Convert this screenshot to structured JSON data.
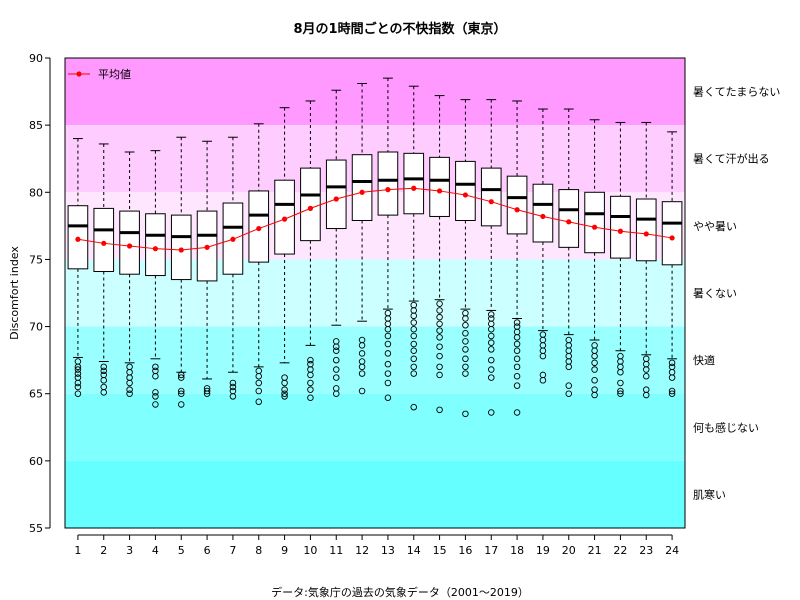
{
  "chart_data": {
    "type": "box",
    "title": "8月の1時間ごとの不快指数（東京）",
    "ylabel": "Discomfort index",
    "xlabel": "",
    "source": "データ:気象庁の過去の気象データ（2001〜2019）",
    "ylim": [
      55,
      90
    ],
    "yticks": [
      "55",
      "60",
      "65",
      "70",
      "75",
      "80",
      "85",
      "90"
    ],
    "categories": [
      "1",
      "2",
      "3",
      "4",
      "5",
      "6",
      "7",
      "8",
      "9",
      "10",
      "11",
      "12",
      "13",
      "14",
      "15",
      "16",
      "17",
      "18",
      "19",
      "20",
      "21",
      "22",
      "23",
      "24"
    ],
    "legend": {
      "label": "平均値",
      "position": "top-left",
      "color": "#ff0000"
    },
    "zones": [
      {
        "label": "暑くてたまらない",
        "from": 85,
        "to": 90,
        "color": "#ff99ff"
      },
      {
        "label": "暑くて汗が出る",
        "from": 80,
        "to": 85,
        "color": "#ffccff"
      },
      {
        "label": "やや暑い",
        "from": 75,
        "to": 80,
        "color": "#ffe6ff"
      },
      {
        "label": "暑くない",
        "from": 70,
        "to": 75,
        "color": "#ccffff"
      },
      {
        "label": "快適",
        "from": 65,
        "to": 70,
        "color": "#99ffff"
      },
      {
        "label": "何も感じない",
        "from": 60,
        "to": 65,
        "color": "#80ffff"
      },
      {
        "label": "肌寒い",
        "from": 55,
        "to": 60,
        "color": "#66ffff"
      }
    ],
    "series": [
      {
        "name": "平均値",
        "values": [
          76.5,
          76.2,
          76.0,
          75.8,
          75.7,
          75.9,
          76.5,
          77.3,
          78.0,
          78.8,
          79.5,
          80.0,
          80.2,
          80.3,
          80.1,
          79.8,
          79.3,
          78.7,
          78.2,
          77.8,
          77.4,
          77.1,
          76.9,
          76.6
        ]
      }
    ],
    "boxes": [
      {
        "whisker_low": 67.7,
        "q1": 74.3,
        "median": 77.5,
        "q3": 79.0,
        "whisker_high": 84.0,
        "outliers": [
          67.4,
          67.0,
          66.8,
          66.5,
          66.2,
          65.8,
          65.5,
          65.0
        ]
      },
      {
        "whisker_low": 67.4,
        "q1": 74.1,
        "median": 77.2,
        "q3": 78.8,
        "whisker_high": 83.6,
        "outliers": [
          67.0,
          66.7,
          66.4,
          66.0,
          65.5,
          65.1
        ]
      },
      {
        "whisker_low": 67.3,
        "q1": 73.9,
        "median": 77.0,
        "q3": 78.6,
        "whisker_high": 83.0,
        "outliers": [
          67.0,
          66.6,
          66.2,
          65.8,
          65.3,
          65.0
        ]
      },
      {
        "whisker_low": 67.6,
        "q1": 73.8,
        "median": 76.8,
        "q3": 78.4,
        "whisker_high": 83.1,
        "outliers": [
          67.0,
          66.7,
          66.3,
          65.1,
          64.8,
          64.2
        ]
      },
      {
        "whisker_low": 66.6,
        "q1": 73.5,
        "median": 76.7,
        "q3": 78.3,
        "whisker_high": 84.1,
        "outliers": [
          66.4,
          66.2,
          65.2,
          65.0,
          64.2
        ]
      },
      {
        "whisker_low": 66.1,
        "q1": 73.4,
        "median": 76.8,
        "q3": 78.6,
        "whisker_high": 83.8,
        "outliers": [
          65.4,
          65.2,
          65.0
        ]
      },
      {
        "whisker_low": 66.6,
        "q1": 73.9,
        "median": 77.4,
        "q3": 79.2,
        "whisker_high": 84.1,
        "outliers": [
          65.8,
          65.5,
          65.2,
          64.8
        ]
      },
      {
        "whisker_low": 67.0,
        "q1": 74.8,
        "median": 78.3,
        "q3": 80.1,
        "whisker_high": 85.1,
        "outliers": [
          66.7,
          66.3,
          65.8,
          65.2,
          64.4
        ]
      },
      {
        "whisker_low": 67.3,
        "q1": 75.4,
        "median": 79.1,
        "q3": 80.9,
        "whisker_high": 86.3,
        "outliers": [
          66.2,
          65.8,
          65.3,
          65.0,
          64.8
        ]
      },
      {
        "whisker_low": 68.6,
        "q1": 76.4,
        "median": 79.8,
        "q3": 81.8,
        "whisker_high": 86.8,
        "outliers": [
          67.5,
          67.2,
          66.8,
          66.4,
          65.8,
          65.3,
          64.7
        ]
      },
      {
        "whisker_low": 70.1,
        "q1": 77.3,
        "median": 80.4,
        "q3": 82.4,
        "whisker_high": 87.6,
        "outliers": [
          68.9,
          68.5,
          68.2,
          67.5,
          66.8,
          66.2,
          65.4,
          65.0
        ]
      },
      {
        "whisker_low": 70.4,
        "q1": 77.9,
        "median": 80.8,
        "q3": 82.8,
        "whisker_high": 88.1,
        "outliers": [
          69.0,
          68.6,
          68.0,
          67.4,
          67.0,
          66.5,
          65.2
        ]
      },
      {
        "whisker_low": 71.3,
        "q1": 78.3,
        "median": 80.9,
        "q3": 83.0,
        "whisker_high": 88.5,
        "outliers": [
          71.0,
          70.6,
          70.2,
          69.8,
          69.3,
          68.7,
          68.0,
          67.2,
          66.5,
          65.8,
          64.7
        ]
      },
      {
        "whisker_low": 71.9,
        "q1": 78.4,
        "median": 81.0,
        "q3": 82.9,
        "whisker_high": 87.9,
        "outliers": [
          71.6,
          71.2,
          70.8,
          70.3,
          69.8,
          69.3,
          68.7,
          68.2,
          67.6,
          67.0,
          66.5,
          64.0
        ]
      },
      {
        "whisker_low": 72.0,
        "q1": 78.2,
        "median": 80.9,
        "q3": 82.6,
        "whisker_high": 87.2,
        "outliers": [
          71.7,
          71.2,
          70.7,
          70.2,
          69.7,
          69.2,
          68.5,
          67.8,
          67.0,
          66.4,
          63.8
        ]
      },
      {
        "whisker_low": 71.3,
        "q1": 77.9,
        "median": 80.6,
        "q3": 82.3,
        "whisker_high": 86.9,
        "outliers": [
          71.0,
          70.6,
          70.1,
          69.5,
          68.9,
          68.3,
          67.6,
          67.0,
          66.5,
          63.5
        ]
      },
      {
        "whisker_low": 71.2,
        "q1": 77.5,
        "median": 80.2,
        "q3": 81.8,
        "whisker_high": 86.9,
        "outliers": [
          70.9,
          70.6,
          70.2,
          69.8,
          69.3,
          68.8,
          68.3,
          67.5,
          66.8,
          66.2,
          63.6
        ]
      },
      {
        "whisker_low": 70.6,
        "q1": 76.9,
        "median": 79.6,
        "q3": 81.2,
        "whisker_high": 86.8,
        "outliers": [
          70.3,
          70.0,
          69.6,
          69.2,
          68.7,
          68.2,
          67.6,
          67.0,
          66.3,
          65.6,
          63.6
        ]
      },
      {
        "whisker_low": 69.7,
        "q1": 76.3,
        "median": 79.1,
        "q3": 80.6,
        "whisker_high": 86.2,
        "outliers": [
          69.4,
          69.0,
          68.6,
          68.2,
          67.8,
          66.4,
          66.0
        ]
      },
      {
        "whisker_low": 69.4,
        "q1": 75.9,
        "median": 78.7,
        "q3": 80.2,
        "whisker_high": 86.2,
        "outliers": [
          69.0,
          68.6,
          68.2,
          67.8,
          67.4,
          67.0,
          65.6,
          65.0
        ]
      },
      {
        "whisker_low": 69.0,
        "q1": 75.5,
        "median": 78.4,
        "q3": 80.0,
        "whisker_high": 85.4,
        "outliers": [
          68.6,
          68.2,
          67.8,
          67.3,
          66.8,
          66.0,
          65.3,
          64.9
        ]
      },
      {
        "whisker_low": 68.2,
        "q1": 75.1,
        "median": 78.2,
        "q3": 79.7,
        "whisker_high": 85.2,
        "outliers": [
          67.8,
          67.4,
          67.0,
          66.6,
          65.8,
          65.2,
          65.0
        ]
      },
      {
        "whisker_low": 67.9,
        "q1": 74.9,
        "median": 78.0,
        "q3": 79.5,
        "whisker_high": 85.2,
        "outliers": [
          67.6,
          67.2,
          66.8,
          66.3,
          65.3,
          64.9
        ]
      },
      {
        "whisker_low": 67.6,
        "q1": 74.6,
        "median": 77.7,
        "q3": 79.3,
        "whisker_high": 84.5,
        "outliers": [
          67.3,
          67.0,
          66.6,
          66.2,
          65.2,
          65.0
        ]
      }
    ]
  }
}
